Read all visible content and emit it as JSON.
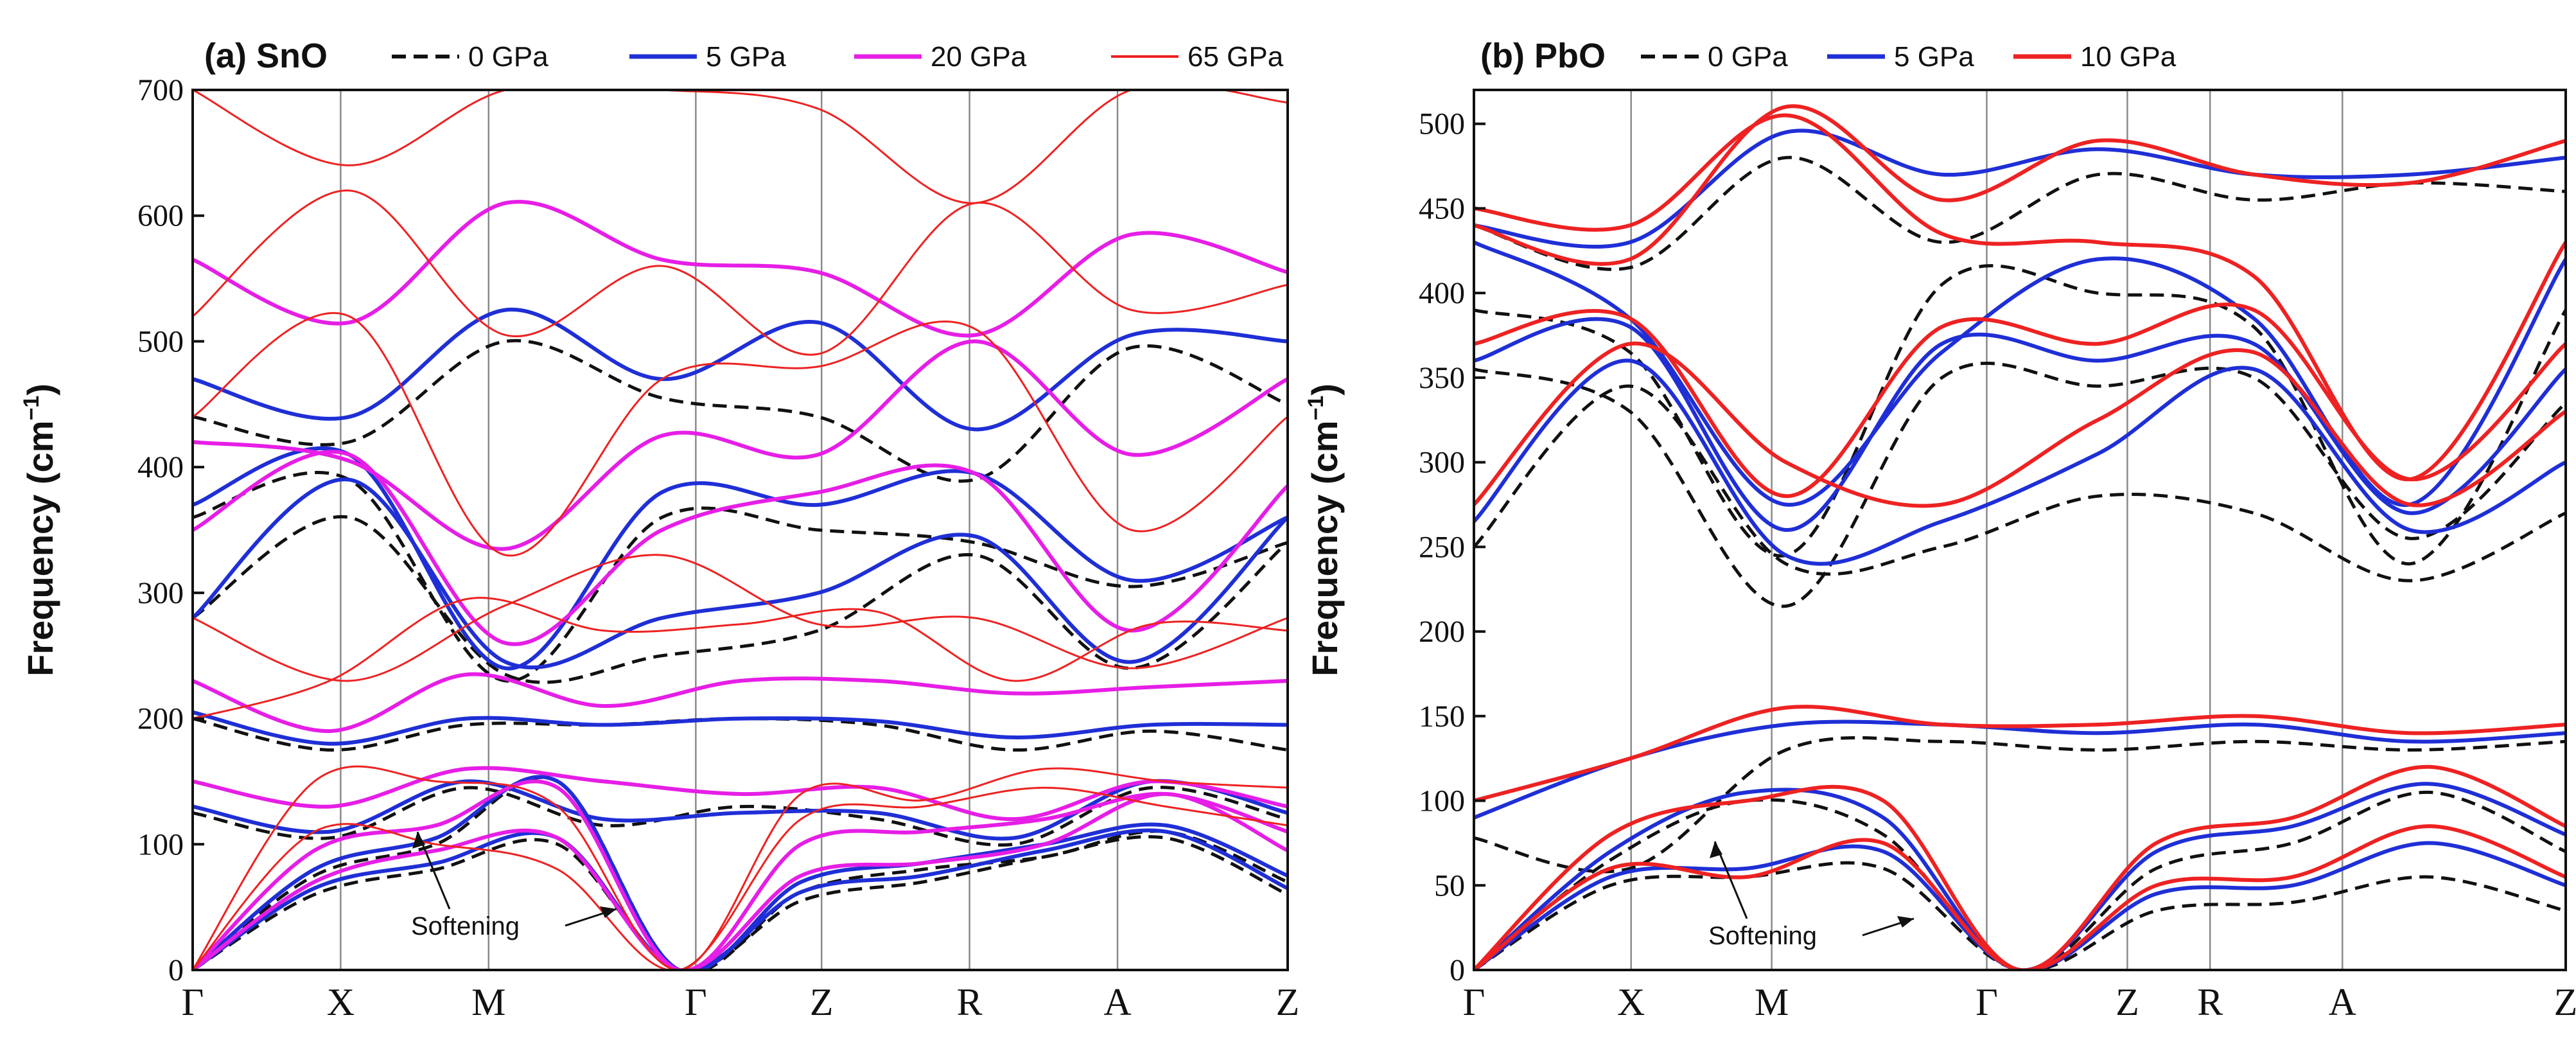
{
  "chart_data": [
    {
      "type": "line",
      "title": "(a) SnO",
      "ylabel": "Frequency (cm",
      "ylabel_sup": "−1",
      "ylabel_close": ")",
      "ylim": [
        0,
        700
      ],
      "yticks": [
        0,
        100,
        200,
        300,
        400,
        500,
        600,
        700
      ],
      "kpoints": [
        {
          "label": "Γ",
          "pos": 0.0
        },
        {
          "label": "X",
          "pos": 1.0
        },
        {
          "label": "M",
          "pos": 2.0
        },
        {
          "label": "Γ",
          "pos": 3.4
        },
        {
          "label": "Z",
          "pos": 4.25
        },
        {
          "label": "R",
          "pos": 5.25
        },
        {
          "label": "A",
          "pos": 6.25
        },
        {
          "label": "Z",
          "pos": 7.4
        }
      ],
      "annotation": "Softening",
      "series": [
        {
          "name": "0 GPa",
          "color": "#111111",
          "dash": true,
          "width": 5,
          "bands": [
            [
              0,
              60,
              80,
              100,
              0,
              55,
              70,
              90,
              105,
              60
            ],
            [
              0,
              75,
              100,
              150,
              0,
              62,
              80,
              90,
              110,
              70
            ],
            [
              125,
              105,
              145,
              115,
              130,
              120,
              100,
              145,
              120
            ],
            [
              200,
              175,
              195,
              195,
              200,
              195,
              175,
              190,
              175
            ],
            [
              280,
              360,
              235,
              250,
              270,
              330,
              240,
              340
            ],
            [
              360,
              390,
              230,
              360,
              350,
              340,
              305,
              340
            ],
            [
              440,
              420,
              500,
              455,
              440,
              390,
              495,
              450
            ]
          ]
        },
        {
          "name": "5 GPa",
          "color": "#1f2fd6",
          "dash": false,
          "width": 6,
          "bands": [
            [
              0,
              65,
              85,
              105,
              0,
              62,
              75,
              95,
              110,
              65
            ],
            [
              0,
              80,
              105,
              150,
              0,
              70,
              85,
              100,
              115,
              75
            ],
            [
              130,
              110,
              150,
              120,
              125,
              125,
              105,
              150,
              125
            ],
            [
              205,
              180,
              200,
              195,
              200,
              198,
              185,
              195,
              195
            ],
            [
              280,
              390,
              245,
              280,
              300,
              345,
              245,
              360
            ],
            [
              370,
              410,
              240,
              380,
              370,
              395,
              310,
              360
            ],
            [
              470,
              440,
              525,
              470,
              515,
              430,
              505,
              500
            ]
          ]
        },
        {
          "name": "20 GPa",
          "color": "#e61ee6",
          "dash": false,
          "width": 6,
          "bands": [
            [
              0,
              70,
              95,
              105,
              0,
              75,
              85,
              100,
              140,
              95
            ],
            [
              0,
              95,
              115,
              145,
              0,
              100,
              110,
              120,
              140,
              110
            ],
            [
              150,
              130,
              160,
              150,
              140,
              145,
              120,
              150,
              130
            ],
            [
              230,
              190,
              235,
              210,
              230,
              230,
              220,
              225,
              230
            ],
            [
              350,
              410,
              260,
              350,
              380,
              395,
              270,
              385
            ],
            [
              420,
              405,
              335,
              425,
              410,
              500,
              410,
              470
            ],
            [
              565,
              515,
              610,
              565,
              555,
              505,
              585,
              555
            ]
          ]
        },
        {
          "name": "65 GPa",
          "color": "#ee2222",
          "dash": false,
          "width": 3,
          "bands": [
            [
              0,
              110,
              100,
              80,
              0,
              120,
              130,
              145,
              130,
              115
            ],
            [
              0,
              150,
              150,
              130,
              0,
              140,
              135,
              160,
              150,
              145
            ],
            [
              200,
              230,
              295,
              270,
              275,
              285,
              230,
              275,
              270
            ],
            [
              280,
              230,
              290,
              330,
              275,
              280,
              240,
              280
            ],
            [
              440,
              520,
              330,
              470,
              480,
              510,
              350,
              440
            ],
            [
              520,
              620,
              505,
              560,
              490,
              610,
              525,
              545
            ],
            [
              700,
              640,
              700,
              700,
              685,
              610,
              700,
              690
            ]
          ]
        }
      ]
    },
    {
      "type": "line",
      "title": "(b) PbO",
      "ylabel": "Frequency (cm",
      "ylabel_sup": "−1",
      "ylabel_close": ")",
      "ylim": [
        0,
        520
      ],
      "yticks": [
        0,
        50,
        100,
        150,
        200,
        250,
        300,
        350,
        400,
        450,
        500
      ],
      "kpoints": [
        {
          "label": "Γ",
          "pos": 0.0
        },
        {
          "label": "X",
          "pos": 0.95
        },
        {
          "label": "M",
          "pos": 1.8
        },
        {
          "label": "Γ",
          "pos": 3.1
        },
        {
          "label": "Z",
          "pos": 3.95
        },
        {
          "label": "R",
          "pos": 4.45
        },
        {
          "label": "A",
          "pos": 5.25
        },
        {
          "label": "Z",
          "pos": 6.6
        }
      ],
      "annotation": "Softening",
      "series": [
        {
          "name": "0 GPa",
          "color": "#111111",
          "dash": true,
          "width": 5,
          "bands": [
            [
              0,
              50,
              55,
              60,
              0,
              35,
              40,
              55,
              35
            ],
            [
              0,
              65,
              100,
              80,
              0,
              60,
              75,
              105,
              70
            ],
            [
              78,
              60,
              130,
              135,
              130,
              135,
              130,
              135
            ],
            [
              250,
              345,
              240,
              250,
              280,
              270,
              230,
              270
            ],
            [
              355,
              330,
              215,
              350,
              345,
              350,
              255,
              335
            ],
            [
              390,
              365,
              245,
              405,
              400,
              380,
              240,
              390
            ],
            [
              440,
              415,
              480,
              430,
              470,
              455,
              465,
              460
            ]
          ]
        },
        {
          "name": "5 GPa",
          "color": "#1f2fd6",
          "dash": false,
          "width": 6,
          "bands": [
            [
              0,
              55,
              60,
              70,
              0,
              45,
              50,
              75,
              50
            ],
            [
              0,
              70,
              105,
              90,
              0,
              70,
              85,
              110,
              80
            ],
            [
              90,
              125,
              145,
              145,
              140,
              145,
              135,
              140
            ],
            [
              265,
              360,
              245,
              265,
              305,
              355,
              260,
              300
            ],
            [
              360,
              380,
              260,
              370,
              360,
              370,
              270,
              355
            ],
            [
              430,
              385,
              275,
              365,
              420,
              385,
              275,
              420
            ],
            [
              440,
              430,
              495,
              470,
              485,
              470,
              470,
              480
            ]
          ]
        },
        {
          "name": "10 GPa",
          "color": "#ee2222",
          "dash": false,
          "width": 6,
          "bands": [
            [
              0,
              60,
              55,
              75,
              0,
              50,
              55,
              85,
              55
            ],
            [
              0,
              80,
              100,
              100,
              0,
              75,
              90,
              120,
              85
            ],
            [
              100,
              125,
              155,
              145,
              145,
              150,
              140,
              145
            ],
            [
              275,
              370,
              300,
              275,
              325,
              365,
              275,
              330
            ],
            [
              370,
              385,
              280,
              380,
              370,
              390,
              290,
              370
            ],
            [
              440,
              420,
              510,
              455,
              490,
              470,
              465,
              490
            ],
            [
              450,
              440,
              505,
              435,
              430,
              410,
              290,
              430
            ]
          ]
        }
      ]
    }
  ]
}
